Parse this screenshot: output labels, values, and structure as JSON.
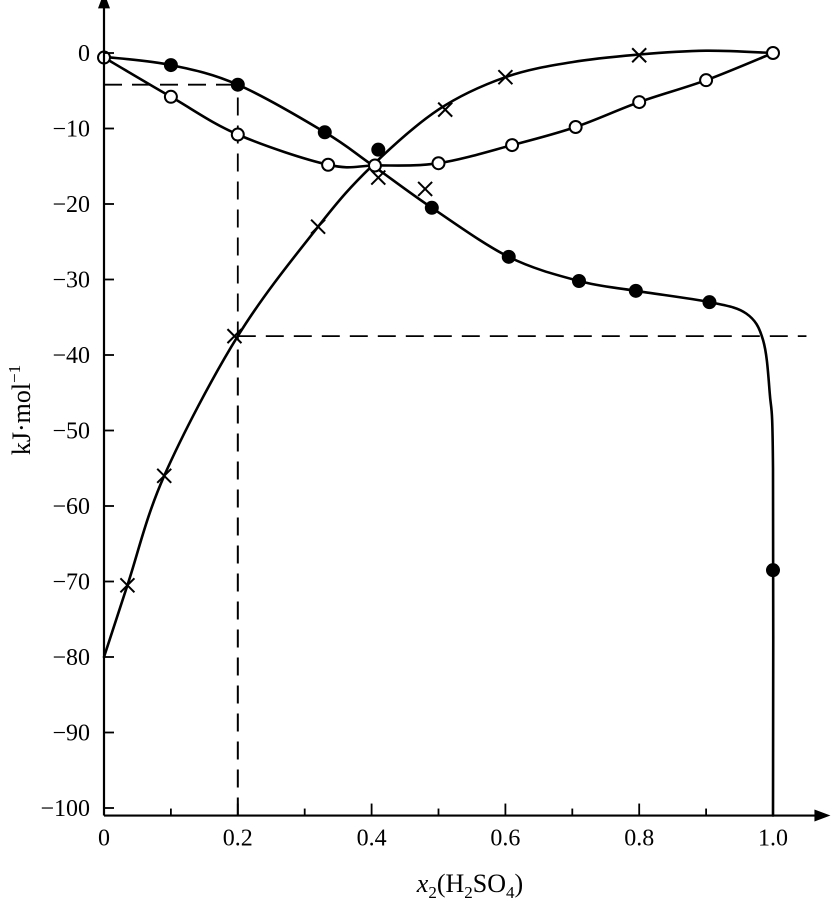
{
  "chart_data": {
    "type": "line",
    "title": "",
    "xlabel": {
      "prefix": "x",
      "sub": "2",
      "open": "(H",
      "sub2": "2",
      "mid": "SO",
      "sub3": "4",
      "close": ")"
    },
    "ylabel": {
      "main": "kJ·mol",
      "sup": "−1"
    },
    "xlim": [
      0,
      1.05
    ],
    "ylim": [
      -101,
      3
    ],
    "xticks": [
      0,
      0.2,
      0.4,
      0.6,
      0.8,
      1.0
    ],
    "xtick_labels": [
      "0",
      "0.2",
      "0.4",
      "0.6",
      "0.8",
      "1.0"
    ],
    "xminor": [
      0.1,
      0.3,
      0.5,
      0.7,
      0.9
    ],
    "yticks": [
      0,
      -10,
      -20,
      -30,
      -40,
      -50,
      -60,
      -70,
      -80,
      -90,
      -100
    ],
    "ytick_labels": [
      "0",
      "−10",
      "−20",
      "−30",
      "−40",
      "−50",
      "−60",
      "−70",
      "−80",
      "−90",
      "−100"
    ],
    "grid": false,
    "series": [
      {
        "marker": "cross",
        "points": [
          [
            0.035,
            -70.5
          ],
          [
            0.09,
            -56.0
          ],
          [
            0.195,
            -37.5
          ],
          [
            0.32,
            -23.0
          ],
          [
            0.41,
            -16.5
          ],
          [
            0.48,
            -18.0
          ],
          [
            0.51,
            -7.5
          ],
          [
            0.6,
            -3.2
          ],
          [
            0.8,
            -0.3
          ]
        ],
        "curve": [
          [
            0.0,
            -80.0
          ],
          [
            0.035,
            -70.5
          ],
          [
            0.09,
            -56.0
          ],
          [
            0.2,
            -37.5
          ],
          [
            0.32,
            -23.0
          ],
          [
            0.4,
            -15.0
          ],
          [
            0.5,
            -7.5
          ],
          [
            0.6,
            -3.2
          ],
          [
            0.7,
            -1.2
          ],
          [
            0.8,
            -0.2
          ],
          [
            0.9,
            0.3
          ],
          [
            1.0,
            0.0
          ]
        ]
      },
      {
        "marker": "filled-circle",
        "points": [
          [
            0.1,
            -1.6
          ],
          [
            0.2,
            -4.2
          ],
          [
            0.33,
            -10.5
          ],
          [
            0.41,
            -12.8
          ],
          [
            0.49,
            -20.5
          ],
          [
            0.605,
            -27.0
          ],
          [
            0.71,
            -30.2
          ],
          [
            0.795,
            -31.5
          ],
          [
            0.905,
            -33.0
          ],
          [
            1.0,
            -68.5
          ]
        ],
        "curve": [
          [
            0.0,
            -0.5
          ],
          [
            0.1,
            -1.6
          ],
          [
            0.2,
            -4.2
          ],
          [
            0.33,
            -10.5
          ],
          [
            0.4,
            -14.8
          ],
          [
            0.49,
            -20.5
          ],
          [
            0.605,
            -27.0
          ],
          [
            0.71,
            -30.2
          ],
          [
            0.795,
            -31.5
          ],
          [
            0.905,
            -33.0
          ],
          [
            0.96,
            -34.5
          ],
          [
            0.985,
            -38.0
          ],
          [
            0.995,
            -45.0
          ],
          [
            1.0,
            -55.0
          ],
          [
            1.0,
            -101.0
          ]
        ]
      },
      {
        "marker": "open-circle",
        "points": [
          [
            0.0,
            -0.6
          ],
          [
            0.1,
            -5.8
          ],
          [
            0.2,
            -10.8
          ],
          [
            0.335,
            -14.8
          ],
          [
            0.405,
            -14.9
          ],
          [
            0.5,
            -14.6
          ],
          [
            0.61,
            -12.2
          ],
          [
            0.705,
            -9.8
          ],
          [
            0.8,
            -6.5
          ],
          [
            0.9,
            -3.6
          ],
          [
            1.0,
            0.0
          ]
        ],
        "curve": [
          [
            0.0,
            -0.6
          ],
          [
            0.1,
            -5.8
          ],
          [
            0.2,
            -10.8
          ],
          [
            0.335,
            -14.8
          ],
          [
            0.405,
            -14.9
          ],
          [
            0.5,
            -14.6
          ],
          [
            0.61,
            -12.2
          ],
          [
            0.705,
            -9.8
          ],
          [
            0.8,
            -6.5
          ],
          [
            0.9,
            -3.6
          ],
          [
            1.0,
            0.0
          ]
        ]
      }
    ],
    "guides": [
      {
        "x": 0.2,
        "y": -4.2
      },
      {
        "x": 0.2,
        "y": -37.5
      }
    ]
  }
}
